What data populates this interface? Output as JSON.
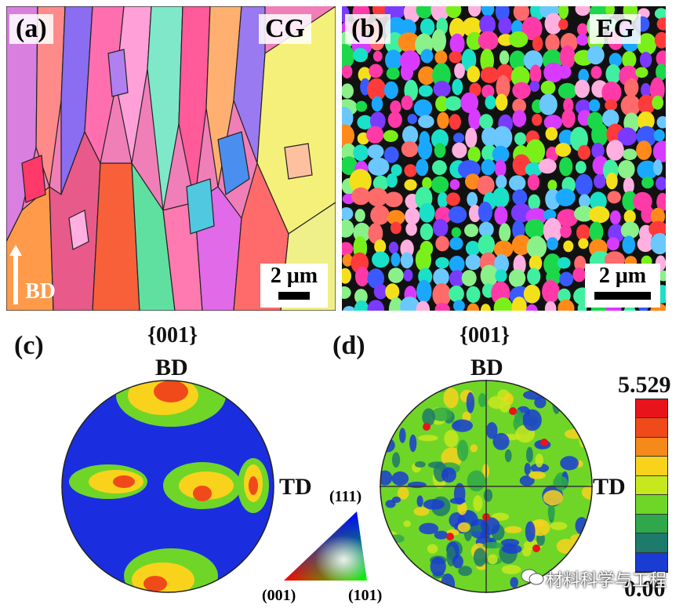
{
  "panel_a": {
    "label": "(a)",
    "tag": "CG",
    "scale": "2 μm",
    "direction": "BD"
  },
  "panel_b": {
    "label": "(b)",
    "tag": "EG",
    "scale": "2 μm"
  },
  "panel_c": {
    "label": "(c)",
    "plane": "{001}",
    "top": "BD",
    "right": "TD"
  },
  "panel_d": {
    "label": "(d)",
    "plane": "{001}",
    "top": "BD",
    "right": "TD"
  },
  "ipf_key": {
    "top": "(111)",
    "left": "(001)",
    "right": "(101)"
  },
  "colorbar": {
    "max": "5.529",
    "min": "0.00",
    "colors": [
      "#e8141b",
      "#f04a1a",
      "#f58a1a",
      "#f9d21c",
      "#c8e81e",
      "#6fd628",
      "#2ea84a",
      "#1e7a6a",
      "#1a3cd2"
    ]
  },
  "watermark": "材料科学与工程"
}
